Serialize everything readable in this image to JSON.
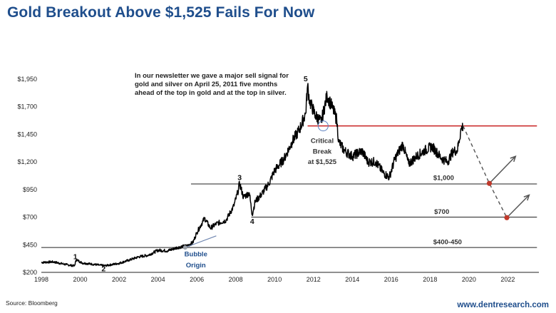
{
  "title": "Gold Breakout Above $1,525 Fails For Now",
  "source": "Source: Bloomberg",
  "website": "www.dentresearch.com",
  "note": "In our newsletter we gave a major sell signal for gold and silver on April 25, 2011 five months ahead of the top in gold and at the top in silver.",
  "colors": {
    "title": "#1f4e8c",
    "price": "#000000",
    "breakout_line": "#c00000",
    "support": "#222222",
    "projection": "#555555",
    "target_dot": "#c0392b"
  },
  "chart_data": {
    "type": "line",
    "title": "Gold Breakout Above $1,525 Fails For Now",
    "xlabel": "",
    "ylabel": "",
    "xlim": [
      1998,
      2023.6
    ],
    "ylim": [
      200,
      2000
    ],
    "x_ticks": [
      "1998",
      "2000",
      "2002",
      "2004",
      "2006",
      "2008",
      "2010",
      "2012",
      "2014",
      "2016",
      "2018",
      "2020",
      "2022"
    ],
    "y_ticks": [
      "$200",
      "$450",
      "$700",
      "$950",
      "$1,200",
      "$1,450",
      "$1,700",
      "$1,950"
    ],
    "series": [
      {
        "name": "Gold price",
        "points": [
          [
            1998.0,
            290
          ],
          [
            1998.6,
            295
          ],
          [
            1999.3,
            270
          ],
          [
            1999.7,
            258
          ],
          [
            1999.8,
            315
          ],
          [
            2000.1,
            285
          ],
          [
            2000.6,
            275
          ],
          [
            2001.0,
            265
          ],
          [
            2001.3,
            260
          ],
          [
            2001.6,
            270
          ],
          [
            2002.0,
            282
          ],
          [
            2002.5,
            310
          ],
          [
            2003.0,
            340
          ],
          [
            2003.5,
            355
          ],
          [
            2004.0,
            400
          ],
          [
            2004.5,
            395
          ],
          [
            2005.0,
            425
          ],
          [
            2005.5,
            440
          ],
          [
            2005.8,
            470
          ],
          [
            2006.0,
            560
          ],
          [
            2006.4,
            690
          ],
          [
            2006.7,
            600
          ],
          [
            2007.0,
            640
          ],
          [
            2007.5,
            670
          ],
          [
            2007.9,
            800
          ],
          [
            2008.1,
            920
          ],
          [
            2008.2,
            1005
          ],
          [
            2008.4,
            880
          ],
          [
            2008.7,
            920
          ],
          [
            2008.85,
            720
          ],
          [
            2009.0,
            840
          ],
          [
            2009.3,
            900
          ],
          [
            2009.7,
            1000
          ],
          [
            2010.0,
            1120
          ],
          [
            2010.5,
            1230
          ],
          [
            2010.9,
            1380
          ],
          [
            2011.3,
            1500
          ],
          [
            2011.6,
            1640
          ],
          [
            2011.7,
            1890
          ],
          [
            2011.8,
            1750
          ],
          [
            2012.1,
            1620
          ],
          [
            2012.4,
            1560
          ],
          [
            2012.7,
            1800
          ],
          [
            2013.0,
            1680
          ],
          [
            2013.2,
            1580
          ],
          [
            2013.3,
            1380
          ],
          [
            2013.6,
            1300
          ],
          [
            2014.0,
            1250
          ],
          [
            2014.5,
            1300
          ],
          [
            2014.8,
            1200
          ],
          [
            2015.2,
            1200
          ],
          [
            2015.6,
            1100
          ],
          [
            2015.9,
            1060
          ],
          [
            2016.2,
            1230
          ],
          [
            2016.6,
            1360
          ],
          [
            2016.9,
            1180
          ],
          [
            2017.3,
            1250
          ],
          [
            2017.7,
            1300
          ],
          [
            2018.1,
            1340
          ],
          [
            2018.6,
            1230
          ],
          [
            2018.9,
            1200
          ],
          [
            2019.2,
            1300
          ],
          [
            2019.4,
            1300
          ],
          [
            2019.6,
            1500
          ],
          [
            2019.7,
            1525
          ]
        ]
      }
    ],
    "lines": [
      {
        "label": "Critical Break at $1,525",
        "value": 1525,
        "x_start": 2011.7,
        "x_end": 2023.5
      },
      {
        "label": "$1,000",
        "value": 1000,
        "x_start": 2005.7,
        "x_end": 2023.5
      },
      {
        "label": "$700",
        "value": 700,
        "x_start": 2008.8,
        "x_end": 2023.5
      },
      {
        "label": "$400-450",
        "value": 425,
        "x_start": 1998.0,
        "x_end": 2023.5
      }
    ],
    "projection": [
      [
        2019.7,
        1525
      ],
      [
        2021.05,
        1005
      ],
      [
        2021.95,
        695
      ]
    ],
    "targets": [
      [
        2021.05,
        1005
      ],
      [
        2021.95,
        695
      ]
    ],
    "up_arrows": [
      {
        "from": [
          2021.05,
          1005
        ],
        "to": [
          2022.4,
          1250
        ]
      },
      {
        "from": [
          2021.95,
          695
        ],
        "to": [
          2023.1,
          900
        ]
      }
    ],
    "wave_labels": [
      {
        "text": "1",
        "x": 1999.75,
        "y": 320
      },
      {
        "text": "2",
        "x": 2001.2,
        "y": 210
      },
      {
        "text": "3",
        "x": 2008.2,
        "y": 1035
      },
      {
        "text": "4",
        "x": 2008.85,
        "y": 640
      },
      {
        "text": "5",
        "x": 2011.6,
        "y": 1930
      }
    ],
    "annotations": [
      {
        "text": "Critical",
        "x": 2012.45,
        "y": 1370
      },
      {
        "text": "Break",
        "x": 2012.45,
        "y": 1275
      },
      {
        "text": "at $1,525",
        "x": 2012.45,
        "y": 1180
      },
      {
        "text": "$1,000",
        "x": 2018.7,
        "y": 1035
      },
      {
        "text": "$700",
        "x": 2018.6,
        "y": 730
      },
      {
        "text": "$400-450",
        "x": 2018.9,
        "y": 455
      },
      {
        "text": "Bubble",
        "x": 2005.95,
        "y": 345
      },
      {
        "text": "Origin",
        "x": 2005.95,
        "y": 245
      }
    ],
    "bubble_line": {
      "from": [
        2005.4,
        425
      ],
      "to": [
        2007.0,
        530
      ]
    },
    "markers": [
      {
        "kind": "circle",
        "x": 2012.5,
        "y": 1525
      },
      {
        "kind": "dot",
        "x": 2005.4,
        "y": 425
      }
    ]
  }
}
